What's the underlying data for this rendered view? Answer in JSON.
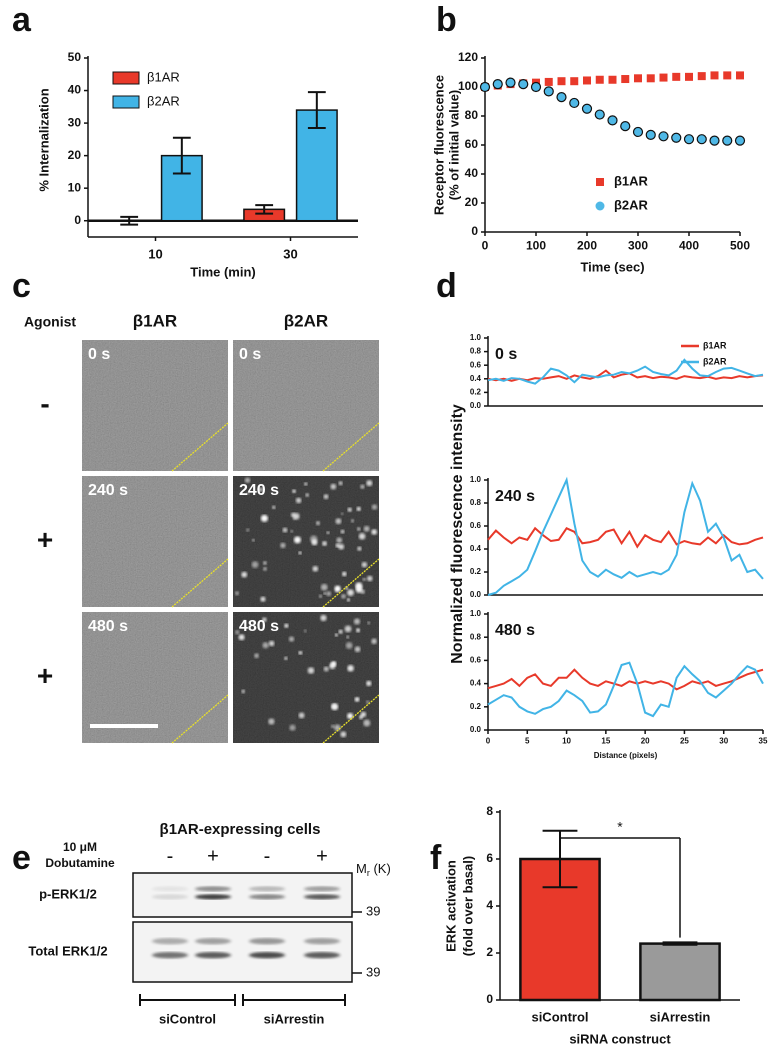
{
  "panels": [
    "a",
    "b",
    "c",
    "d",
    "e",
    "f"
  ],
  "chart_data": [
    {
      "type": "bar",
      "ylabel": "% Internalization",
      "xlabel": "Time (min)",
      "categories": [
        "10",
        "30"
      ],
      "series": [
        {
          "name": "β1AR",
          "color": "#e8392a",
          "values": [
            0,
            3.5
          ],
          "errors": [
            1.2,
            1.3
          ]
        },
        {
          "name": "β2AR",
          "color": "#41b4e6",
          "values": [
            20,
            34
          ],
          "errors": [
            5.5,
            5.5
          ]
        }
      ],
      "ylim": [
        -5,
        50
      ],
      "yticks": [
        0,
        10,
        20,
        30,
        40,
        50
      ],
      "legend": "upper left"
    },
    {
      "type": "scatter",
      "ylabel": [
        "Receptor fluorescence",
        "(% of initial value)"
      ],
      "xlabel": "Time (sec)",
      "x": [
        0,
        25,
        50,
        75,
        100,
        125,
        150,
        175,
        200,
        225,
        250,
        275,
        300,
        325,
        350,
        375,
        400,
        425,
        450,
        475,
        500
      ],
      "series": [
        {
          "name": "β1AR",
          "color": "#e8392a",
          "marker": "square",
          "values": [
            100,
            101,
            102,
            102.5,
            103,
            103.5,
            104,
            104,
            104.5,
            105,
            105,
            105.5,
            106,
            106,
            106.5,
            107,
            107,
            107.5,
            108,
            108,
            108
          ]
        },
        {
          "name": "β2AR",
          "color": "#4fb8e6",
          "marker": "circle",
          "values": [
            100,
            102,
            103,
            102,
            100,
            97,
            93,
            89,
            85,
            81,
            77,
            73,
            69,
            67,
            66,
            65,
            64,
            64,
            63,
            63,
            63
          ]
        }
      ],
      "xlim": [
        0,
        500
      ],
      "xticks": [
        0,
        100,
        200,
        300,
        400,
        500
      ],
      "ylim": [
        0,
        120
      ],
      "yticks": [
        0,
        20,
        40,
        60,
        80,
        100,
        120
      ],
      "legend": "lower right"
    },
    {
      "type": "line",
      "annotation": "0 s",
      "x": [
        0,
        1,
        2,
        3,
        4,
        5,
        6,
        7,
        8,
        9,
        10,
        11,
        12,
        13,
        14,
        15,
        16,
        17,
        18,
        19,
        20,
        21,
        22,
        23,
        24,
        25,
        26,
        27,
        28,
        29,
        30,
        31,
        32,
        33,
        34,
        35
      ],
      "series": [
        {
          "name": "β1AR",
          "color": "#e8392a",
          "values": [
            0.4,
            0.38,
            0.4,
            0.37,
            0.4,
            0.38,
            0.41,
            0.4,
            0.42,
            0.44,
            0.4,
            0.45,
            0.42,
            0.4,
            0.44,
            0.52,
            0.42,
            0.46,
            0.48,
            0.42,
            0.44,
            0.41,
            0.43,
            0.42,
            0.4,
            0.44,
            0.42,
            0.41,
            0.43,
            0.4,
            0.42,
            0.41,
            0.44,
            0.42,
            0.44,
            0.45
          ]
        },
        {
          "name": "β2AR",
          "color": "#41b4e6",
          "values": [
            0.38,
            0.4,
            0.37,
            0.41,
            0.4,
            0.36,
            0.33,
            0.42,
            0.55,
            0.52,
            0.45,
            0.35,
            0.46,
            0.44,
            0.42,
            0.45,
            0.46,
            0.5,
            0.48,
            0.52,
            0.58,
            0.5,
            0.47,
            0.45,
            0.52,
            0.68,
            0.55,
            0.45,
            0.44,
            0.5,
            0.55,
            0.56,
            0.52,
            0.48,
            0.44,
            0.46
          ]
        }
      ],
      "xlim": [
        0,
        35
      ],
      "ylim": [
        0,
        1
      ],
      "yticks": [
        {
          "value": 0,
          "label": "0.0"
        },
        0.2,
        0.4,
        0.6,
        0.8,
        {
          "value": 1,
          "label": "1.0"
        }
      ],
      "legend": "upper right"
    },
    {
      "type": "line",
      "annotation": "240 s",
      "ylabel": "Normalized fluorescence intensity",
      "x": [
        0,
        1,
        2,
        3,
        4,
        5,
        6,
        7,
        8,
        9,
        10,
        11,
        12,
        13,
        14,
        15,
        16,
        17,
        18,
        19,
        20,
        21,
        22,
        23,
        24,
        25,
        26,
        27,
        28,
        29,
        30,
        31,
        32,
        33,
        34,
        35
      ],
      "series": [
        {
          "color": "#e8392a",
          "values": [
            0.48,
            0.56,
            0.5,
            0.45,
            0.5,
            0.48,
            0.58,
            0.52,
            0.47,
            0.48,
            0.58,
            0.55,
            0.45,
            0.46,
            0.48,
            0.55,
            0.57,
            0.45,
            0.55,
            0.42,
            0.52,
            0.48,
            0.46,
            0.55,
            0.44,
            0.47,
            0.45,
            0.44,
            0.5,
            0.45,
            0.52,
            0.46,
            0.44,
            0.45,
            0.48,
            0.5
          ]
        },
        {
          "color": "#41b4e6",
          "values": [
            0.0,
            0.02,
            0.08,
            0.12,
            0.16,
            0.22,
            0.38,
            0.55,
            0.7,
            0.85,
            1.0,
            0.62,
            0.3,
            0.2,
            0.16,
            0.22,
            0.18,
            0.15,
            0.2,
            0.16,
            0.18,
            0.2,
            0.18,
            0.22,
            0.35,
            0.72,
            0.97,
            0.82,
            0.55,
            0.62,
            0.5,
            0.3,
            0.35,
            0.2,
            0.22,
            0.14
          ]
        }
      ],
      "xlim": [
        0,
        35
      ],
      "ylim": [
        0,
        1
      ],
      "yticks": [
        {
          "value": 0,
          "label": "0.0"
        },
        0.2,
        0.4,
        0.6,
        0.8,
        {
          "value": 1,
          "label": "1.0"
        }
      ]
    },
    {
      "type": "line",
      "annotation": "480 s",
      "xlabel": "Distance (pixels)",
      "x": [
        0,
        1,
        2,
        3,
        4,
        5,
        6,
        7,
        8,
        9,
        10,
        11,
        12,
        13,
        14,
        15,
        16,
        17,
        18,
        19,
        20,
        21,
        22,
        23,
        24,
        25,
        26,
        27,
        28,
        29,
        30,
        31,
        32,
        33,
        34,
        35
      ],
      "series": [
        {
          "color": "#e8392a",
          "values": [
            0.36,
            0.38,
            0.4,
            0.44,
            0.38,
            0.45,
            0.48,
            0.4,
            0.38,
            0.45,
            0.45,
            0.52,
            0.45,
            0.4,
            0.38,
            0.42,
            0.4,
            0.38,
            0.42,
            0.4,
            0.42,
            0.4,
            0.42,
            0.4,
            0.35,
            0.38,
            0.42,
            0.4,
            0.42,
            0.38,
            0.4,
            0.42,
            0.45,
            0.48,
            0.5,
            0.52
          ]
        },
        {
          "color": "#41b4e6",
          "values": [
            0.22,
            0.26,
            0.3,
            0.28,
            0.2,
            0.16,
            0.14,
            0.18,
            0.2,
            0.25,
            0.34,
            0.3,
            0.25,
            0.15,
            0.16,
            0.22,
            0.38,
            0.56,
            0.58,
            0.4,
            0.15,
            0.12,
            0.22,
            0.2,
            0.45,
            0.55,
            0.48,
            0.42,
            0.32,
            0.28,
            0.34,
            0.4,
            0.48,
            0.55,
            0.52,
            0.4
          ]
        }
      ],
      "xlim": [
        0,
        35
      ],
      "xticks": [
        0,
        5,
        10,
        15,
        20,
        25,
        30,
        35
      ],
      "ylim": [
        0,
        1
      ],
      "yticks": [
        {
          "value": 0,
          "label": "0.0"
        },
        0.2,
        0.4,
        0.6,
        0.8,
        {
          "value": 1,
          "label": "1.0"
        }
      ]
    },
    {
      "type": "bar",
      "ylabel": [
        "ERK activation",
        "(fold over basal)"
      ],
      "xlabel": "siRNA construct",
      "annotation": "*",
      "categories": [
        "siControl",
        "siArrestin"
      ],
      "series": [
        {
          "colors": [
            "#e8392a",
            "#9a9a9a"
          ],
          "values": [
            6.0,
            2.4
          ],
          "errors": [
            1.2,
            0.05
          ]
        }
      ],
      "ylim": [
        0,
        8
      ],
      "yticks": [
        0,
        2,
        4,
        6,
        8
      ]
    }
  ],
  "microscopy": {
    "row_header": "Agonist",
    "columns": [
      "β1AR",
      "β2AR"
    ],
    "rows": [
      {
        "agonist": "-",
        "time": "0 s"
      },
      {
        "agonist": "+",
        "time": "240 s"
      },
      {
        "agonist": "+",
        "time": "480 s"
      }
    ]
  },
  "blot": {
    "title": "β1AR-expressing cells",
    "treatment": [
      "10 μM",
      "Dobutamine"
    ],
    "lanes": [
      "-",
      "+",
      "-",
      "+"
    ],
    "mr": "M",
    "mr_sub": "r",
    "mr_unit": "(K)",
    "rows": [
      {
        "label": "p-ERK1/2",
        "marker": "39"
      },
      {
        "label": "Total ERK1/2",
        "marker": "39"
      }
    ],
    "groups": [
      "siControl",
      "siArrestin"
    ]
  }
}
